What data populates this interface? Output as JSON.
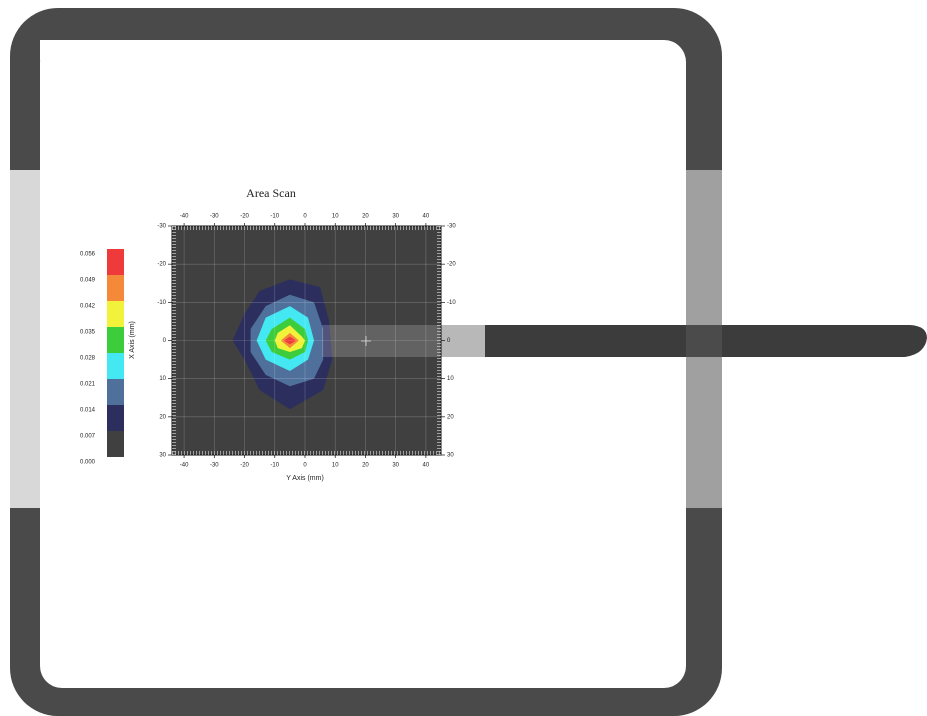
{
  "chart_data": {
    "type": "contour",
    "title": "Area Scan",
    "x_label": "Y Axis (mm)",
    "y_label": "X Axis (mm)",
    "xlim": [
      -44,
      45
    ],
    "ylim": [
      -30,
      30
    ],
    "xticks": [
      -40,
      -30,
      -20,
      -10,
      0,
      10,
      20,
      30,
      40
    ],
    "yticks": [
      -30,
      -20,
      -10,
      0,
      10,
      20,
      30
    ],
    "y_inverted": true,
    "grid": true,
    "background": "#404040",
    "colorbar": {
      "clim": [
        0,
        0.056
      ],
      "ticks": [
        {
          "value": 0,
          "label": "0.000"
        },
        {
          "value": 0.007,
          "label": "0.007"
        },
        {
          "value": 0.014,
          "label": "0.014"
        },
        {
          "value": 0.021,
          "label": "0.021"
        },
        {
          "value": 0.028,
          "label": "0.028"
        },
        {
          "value": 0.035,
          "label": "0.035"
        },
        {
          "value": 0.042,
          "label": "0.042"
        },
        {
          "value": 0.049,
          "label": "0.049"
        },
        {
          "value": 0.056,
          "label": "0.056"
        }
      ],
      "colors": [
        "#404040",
        "#2c2f5e",
        "#50709c",
        "#44e8f2",
        "#3ccc3c",
        "#f2f23a",
        "#f5893a",
        "#ee3a3a"
      ]
    },
    "contours": [
      {
        "level": 0.007,
        "color": "#2c2f5e",
        "x": [
          -5,
          5,
          8,
          9,
          6,
          -5,
          -15,
          -20,
          -24,
          -20,
          -15
        ],
        "y": [
          -16,
          -14,
          -5,
          5,
          13,
          18,
          13,
          5,
          0,
          -7,
          -13
        ]
      },
      {
        "level": 0.014,
        "color": "#50709c",
        "x": [
          -5,
          3,
          6,
          6,
          3,
          -5,
          -13,
          -18,
          -18,
          -13
        ],
        "y": [
          -12,
          -10,
          -3,
          5,
          10,
          12,
          9,
          3,
          -3,
          -9
        ]
      },
      {
        "level": 0.021,
        "color": "#44e8f2",
        "x": [
          -5,
          1,
          3,
          1,
          -5,
          -13,
          -16,
          -13
        ],
        "y": [
          -9,
          -6,
          0,
          5,
          8,
          5,
          0,
          -6
        ]
      },
      {
        "level": 0.028,
        "color": "#3ccc3c",
        "x": [
          -5,
          0,
          1,
          0,
          -5,
          -11,
          -13,
          -11
        ],
        "y": [
          -6,
          -3,
          0,
          3,
          5,
          3,
          0,
          -3
        ]
      },
      {
        "level": 0.035,
        "color": "#f2f23a",
        "x": [
          -5,
          -1,
          0,
          -1,
          -5,
          -9,
          -10,
          -9
        ],
        "y": [
          -4,
          -1,
          0,
          2,
          3,
          2,
          0,
          -2
        ]
      },
      {
        "level": 0.042,
        "color": "#f5893a",
        "x": [
          -5,
          -2,
          -5,
          -8
        ],
        "y": [
          -2,
          0,
          2,
          0
        ]
      },
      {
        "level": 0.049,
        "color": "#ee3a3a",
        "x": [
          -5,
          -3,
          -5,
          -7
        ],
        "y": [
          -1,
          0,
          1,
          0
        ]
      }
    ]
  }
}
